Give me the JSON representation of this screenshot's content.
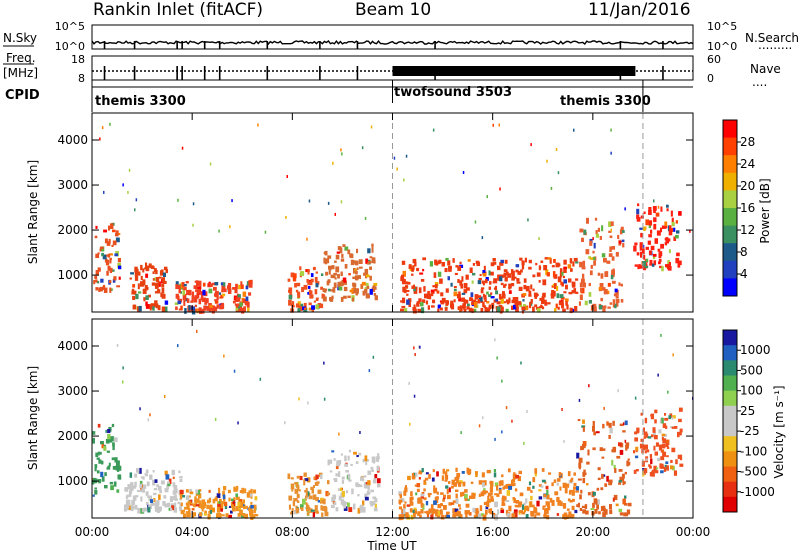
{
  "header": {
    "title": "Rankin Inlet (fitACF)",
    "beam": "Beam 10",
    "date": "11/Jan/2016"
  },
  "left_labels": {
    "nsky": "N.Sky",
    "freq": "Freq.",
    "freq_unit": "[MHz]",
    "cpid": "CPID"
  },
  "right_labels": {
    "nsearch": "N.Search",
    "nsearch_marker": ".........",
    "nave": "Nave",
    "nave_marker": "...."
  },
  "nsky_ticks": [
    "10^5",
    "10^0"
  ],
  "freq_ticks": [
    "18",
    "8"
  ],
  "nave_ticks": [
    "60",
    "0"
  ],
  "cpid": {
    "boundary_hour": 12,
    "late_boundary_hour": 22,
    "labels": [
      "themis 3300",
      "twofsound 3503",
      "themis 3300"
    ]
  },
  "chart_data": [
    {
      "type": "heatmap",
      "name": "power-panel",
      "ylabel": "Slant Range [km]",
      "xlim_hours": [
        0,
        24
      ],
      "ylim_km": [
        180,
        4600
      ],
      "y_ticks": [
        "1000",
        "2000",
        "3000",
        "4000"
      ],
      "colorbar": {
        "label": "Power [dB]",
        "ticks": [
          "28",
          "24",
          "20",
          "16",
          "12",
          "8",
          "4"
        ],
        "colors": [
          "#ff0000",
          "#ff4000",
          "#ff8000",
          "#f0b000",
          "#a8d040",
          "#5ab040",
          "#3a9060",
          "#1c5a8a",
          "#2040c0",
          "#0000ff"
        ]
      },
      "echo_bands": [
        {
          "t": [
            0.0,
            1.1
          ],
          "r": [
            700,
            2200
          ],
          "color": "#e85020"
        },
        {
          "t": [
            1.5,
            3.0
          ],
          "r": [
            300,
            1300
          ],
          "color": "#e64010"
        },
        {
          "t": [
            3.3,
            6.3
          ],
          "r": [
            250,
            900
          ],
          "color": "#f04020"
        },
        {
          "t": [
            7.8,
            9.2
          ],
          "r": [
            250,
            1200
          ],
          "color": "#f05020"
        },
        {
          "t": [
            9.2,
            11.3
          ],
          "r": [
            500,
            1700
          ],
          "color": "#d86a30"
        },
        {
          "t": [
            12.3,
            19.3
          ],
          "r": [
            250,
            1400
          ],
          "color": "#ee3a10"
        },
        {
          "t": [
            19.4,
            21.2
          ],
          "r": [
            300,
            2300
          ],
          "color": "#e86030"
        },
        {
          "t": [
            21.6,
            23.5
          ],
          "r": [
            1200,
            2600
          ],
          "color": "#ff2010"
        }
      ]
    },
    {
      "type": "heatmap",
      "name": "velocity-panel",
      "ylabel": "Slant Range [km]",
      "xlabel": "Time UT",
      "xlim_hours": [
        0,
        24
      ],
      "ylim_km": [
        180,
        4600
      ],
      "y_ticks": [
        "1000",
        "2000",
        "3000",
        "4000"
      ],
      "x_ticks": [
        "00:00",
        "04:00",
        "08:00",
        "12:00",
        "16:00",
        "20:00",
        "00:00"
      ],
      "colorbar": {
        "label": "Velocity [m s⁻¹]",
        "ticks": [
          "1000",
          "500",
          "100",
          "25",
          "-25",
          "-100",
          "-500",
          "-1000"
        ],
        "colors": [
          "#1818a0",
          "#2060c0",
          "#2a8a70",
          "#50b050",
          "#90d050",
          "#c8c8c8",
          "#c8c8c8",
          "#f0c020",
          "#f09010",
          "#f06010",
          "#e83010",
          "#e00000"
        ]
      },
      "echo_bands": [
        {
          "t": [
            0.0,
            1.1
          ],
          "r": [
            700,
            2300
          ],
          "color": "#3a9a5a"
        },
        {
          "t": [
            1.2,
            3.5
          ],
          "r": [
            400,
            1300
          ],
          "color": "#c8c8c8"
        },
        {
          "t": [
            3.5,
            6.5
          ],
          "r": [
            250,
            900
          ],
          "color": "#f09020"
        },
        {
          "t": [
            7.8,
            9.4
          ],
          "r": [
            300,
            1200
          ],
          "color": "#e89030"
        },
        {
          "t": [
            9.4,
            11.4
          ],
          "r": [
            400,
            1700
          ],
          "color": "#c8c8c8"
        },
        {
          "t": [
            12.2,
            19.3
          ],
          "r": [
            250,
            1300
          ],
          "color": "#f08020"
        },
        {
          "t": [
            19.3,
            21.4
          ],
          "r": [
            300,
            2400
          ],
          "color": "#e06020"
        },
        {
          "t": [
            21.6,
            23.5
          ],
          "r": [
            1200,
            2700
          ],
          "color": "#ee5020"
        }
      ]
    }
  ]
}
